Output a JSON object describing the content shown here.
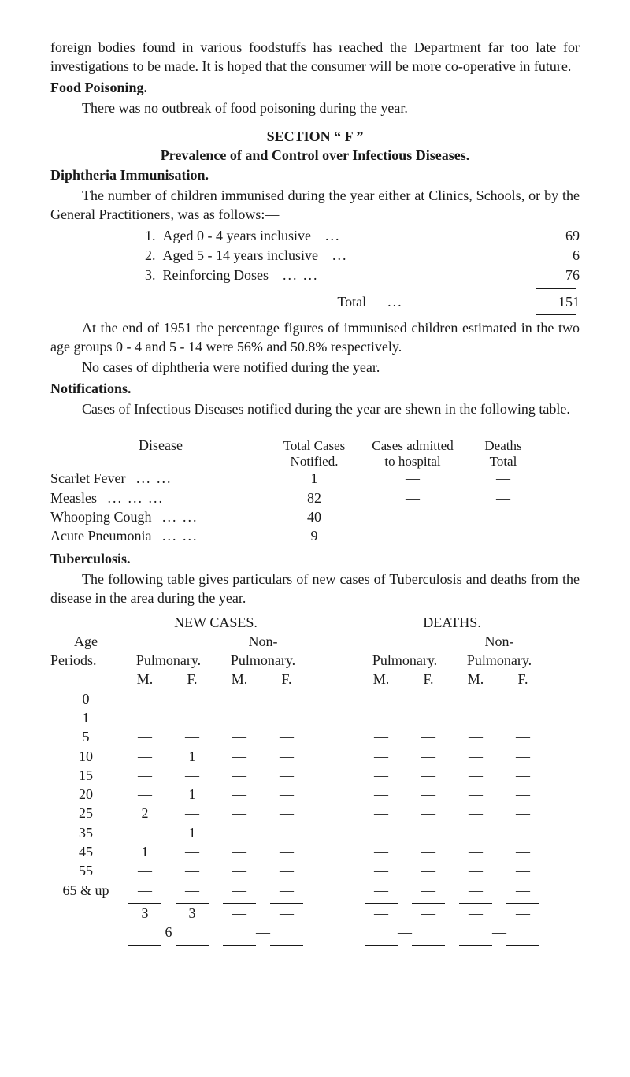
{
  "colors": {
    "text": "#1a1a1a",
    "background": "#ffffff",
    "rule": "#1a1a1a"
  },
  "typography": {
    "body_font": "Times New Roman",
    "body_size_pt": 13,
    "line_height": 1.35,
    "bold_weight": 700
  },
  "intro": {
    "p1": "foreign bodies found in various foodstuffs has reached the Department far too late for investigations to be made. It is hoped that the consumer will be more co-operative in future.",
    "food_poisoning_heading": "Food Poisoning.",
    "food_poisoning_body": "There was no outbreak of food poisoning during the year."
  },
  "section_f": {
    "header": "SECTION “ F ”",
    "subheader": "Prevalence of and Control over Infectious Diseases.",
    "diphtheria_heading": "Diphtheria Immunisation.",
    "diphtheria_body": "The number of children immunised during the year either at Clinics, Schools, or by the General Practitioners, was as follows:—",
    "items": [
      {
        "no": "1.",
        "label": "Aged 0 - 4 years inclusive",
        "dots": "...",
        "val": "69"
      },
      {
        "no": "2.",
        "label": "Aged 5 - 14 years inclusive",
        "dots": "...",
        "val": "6"
      },
      {
        "no": "3.",
        "label": "Reinforcing Doses",
        "dots": "...    ...",
        "val": "76"
      }
    ],
    "total_label": "Total",
    "total_dots": "...",
    "total_val": "151",
    "after_total_p1": "At the end of 1951 the percentage figures of immunised children estimated in the two age groups 0 - 4 and 5 - 14 were 56% and 50.8% respectively.",
    "after_total_p2": "No cases of diphtheria were notified during the year."
  },
  "notifications": {
    "heading": "Notifications.",
    "body": "Cases of Infectious Diseases notified during the year are shewn in the following table.",
    "headers": {
      "disease": "Disease",
      "notified_top": "Total Cases",
      "notified_bot": "Notified.",
      "admitted_top": "Cases admitted",
      "admitted_bot": "to hospital",
      "deaths_top": "Deaths",
      "deaths_bot": "Total"
    },
    "rows": [
      {
        "name": "Scarlet Fever",
        "dots": "...    ...",
        "notified": "1",
        "admitted": "—",
        "deaths": "—"
      },
      {
        "name": "Measles",
        "dots": "...    ...    ...",
        "notified": "82",
        "admitted": "—",
        "deaths": "—"
      },
      {
        "name": "Whooping Cough",
        "dots": "...    ...",
        "notified": "40",
        "admitted": "—",
        "deaths": "—"
      },
      {
        "name": "Acute Pneumonia",
        "dots": "...    ...",
        "notified": "9",
        "admitted": "—",
        "deaths": "—"
      }
    ]
  },
  "tuberculosis": {
    "heading": "Tuberculosis.",
    "body": "The following table gives particulars of new cases of Tuberculosis and deaths from the disease in the area during the year.",
    "super_headers": {
      "new_cases": "NEW CASES.",
      "deaths": "DEATHS."
    },
    "sub_headers": {
      "age": "Age",
      "periods": "Periods.",
      "pulmonary": "Pulmonary.",
      "non": "Non-",
      "non_pulmonary": "Pulmonary.",
      "m": "M.",
      "f": "F."
    },
    "dash": "—",
    "rows": [
      {
        "age": "0",
        "pm": "—",
        "pf": "—",
        "nm": "—",
        "nf": "—",
        "dpm": "—",
        "dpf": "—",
        "dnm": "—",
        "dnf": "—"
      },
      {
        "age": "1",
        "pm": "—",
        "pf": "—",
        "nm": "—",
        "nf": "—",
        "dpm": "—",
        "dpf": "—",
        "dnm": "—",
        "dnf": "—"
      },
      {
        "age": "5",
        "pm": "—",
        "pf": "—",
        "nm": "—",
        "nf": "—",
        "dpm": "—",
        "dpf": "—",
        "dnm": "—",
        "dnf": "—"
      },
      {
        "age": "10",
        "pm": "—",
        "pf": "1",
        "nm": "—",
        "nf": "—",
        "dpm": "—",
        "dpf": "—",
        "dnm": "—",
        "dnf": "—"
      },
      {
        "age": "15",
        "pm": "—",
        "pf": "—",
        "nm": "—",
        "nf": "—",
        "dpm": "—",
        "dpf": "—",
        "dnm": "—",
        "dnf": "—"
      },
      {
        "age": "20",
        "pm": "—",
        "pf": "1",
        "nm": "—",
        "nf": "—",
        "dpm": "—",
        "dpf": "—",
        "dnm": "—",
        "dnf": "—"
      },
      {
        "age": "25",
        "pm": "2",
        "pf": "—",
        "nm": "—",
        "nf": "—",
        "dpm": "—",
        "dpf": "—",
        "dnm": "—",
        "dnf": "—"
      },
      {
        "age": "35",
        "pm": "—",
        "pf": "1",
        "nm": "—",
        "nf": "—",
        "dpm": "—",
        "dpf": "—",
        "dnm": "—",
        "dnf": "—"
      },
      {
        "age": "45",
        "pm": "1",
        "pf": "—",
        "nm": "—",
        "nf": "—",
        "dpm": "—",
        "dpf": "—",
        "dnm": "—",
        "dnf": "—"
      },
      {
        "age": "55",
        "pm": "—",
        "pf": "—",
        "nm": "—",
        "nf": "—",
        "dpm": "—",
        "dpf": "—",
        "dnm": "—",
        "dnf": "—"
      },
      {
        "age": "65 & up",
        "pm": "—",
        "pf": "—",
        "nm": "—",
        "nf": "—",
        "dpm": "—",
        "dpf": "—",
        "dnm": "—",
        "dnf": "—"
      }
    ],
    "totals_row1": {
      "pm": "3",
      "pf": "3",
      "nm": "—",
      "nf": "—",
      "dpm": "—",
      "dpf": "—",
      "dnm": "—",
      "dnf": "—"
    },
    "totals_row2": {
      "pm_pf": "6",
      "nm_nf": "—",
      "dpm_dpf": "—",
      "dnm_dnf": "—"
    }
  }
}
